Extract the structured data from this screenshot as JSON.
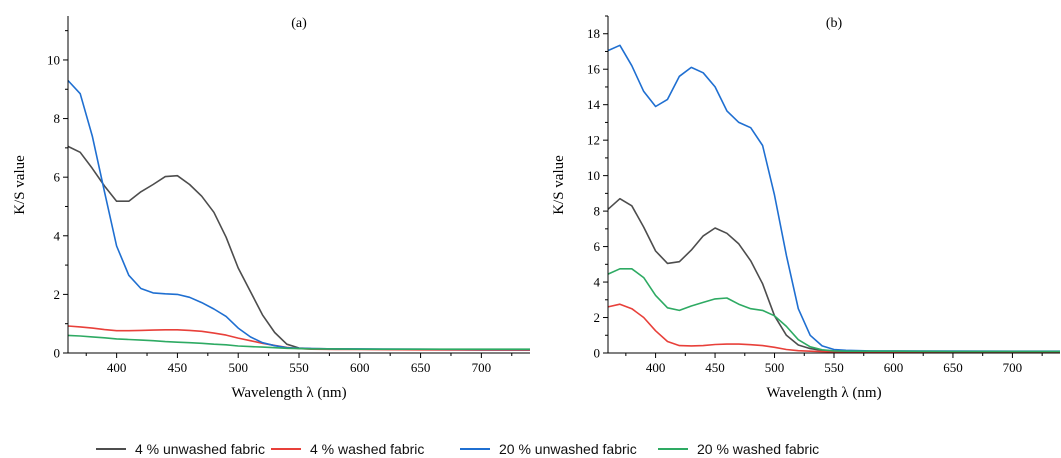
{
  "legend_items": [
    {
      "label": "4 % unwashed fabric",
      "color": "#4d4d4d"
    },
    {
      "label": "4 % washed fabric",
      "color": "#e8403a"
    },
    {
      "label": "20 % unwashed fabric",
      "color": "#1f6fd1"
    },
    {
      "label": "20 % washed fabric",
      "color": "#2eaa63"
    }
  ],
  "chart_data": [
    {
      "type": "line",
      "panel_label": "(a)",
      "xlabel": "Wavelength λ (nm)",
      "ylabel": "K/S value",
      "xlim": [
        360,
        740
      ],
      "ylim": [
        0,
        11.5
      ],
      "xticks": [
        400,
        450,
        500,
        550,
        600,
        650,
        700
      ],
      "yticks": [
        0,
        2,
        4,
        6,
        8,
        10
      ],
      "series": [
        {
          "name": "4 % unwashed fabric",
          "color": "#4d4d4d",
          "x": [
            360,
            370,
            380,
            390,
            400,
            410,
            420,
            430,
            440,
            450,
            460,
            470,
            480,
            490,
            500,
            510,
            520,
            530,
            540,
            550,
            560,
            580,
            600,
            650,
            700,
            740
          ],
          "y": [
            7.05,
            6.85,
            6.3,
            5.7,
            5.18,
            5.18,
            5.5,
            5.75,
            6.02,
            6.05,
            5.75,
            5.35,
            4.8,
            3.95,
            2.9,
            2.1,
            1.3,
            0.7,
            0.3,
            0.17,
            0.15,
            0.14,
            0.13,
            0.12,
            0.11,
            0.1
          ]
        },
        {
          "name": "4 % washed fabric",
          "color": "#e8403a",
          "x": [
            360,
            370,
            380,
            390,
            400,
            410,
            420,
            430,
            440,
            450,
            460,
            470,
            480,
            490,
            500,
            510,
            520,
            530,
            540,
            550,
            560,
            580,
            600,
            650,
            700,
            740
          ],
          "y": [
            0.92,
            0.89,
            0.85,
            0.8,
            0.76,
            0.76,
            0.77,
            0.78,
            0.79,
            0.79,
            0.77,
            0.74,
            0.68,
            0.61,
            0.51,
            0.42,
            0.33,
            0.26,
            0.19,
            0.15,
            0.13,
            0.12,
            0.12,
            0.11,
            0.1,
            0.1
          ]
        },
        {
          "name": "20 % unwashed fabric",
          "color": "#1f6fd1",
          "x": [
            360,
            370,
            380,
            390,
            400,
            410,
            420,
            430,
            440,
            450,
            460,
            470,
            480,
            490,
            500,
            510,
            520,
            530,
            540,
            550,
            560,
            580,
            600,
            650,
            700,
            740
          ],
          "y": [
            9.3,
            8.85,
            7.4,
            5.5,
            3.65,
            2.65,
            2.2,
            2.05,
            2.02,
            2.0,
            1.9,
            1.72,
            1.5,
            1.25,
            0.85,
            0.55,
            0.35,
            0.25,
            0.18,
            0.16,
            0.15,
            0.14,
            0.14,
            0.13,
            0.12,
            0.12
          ]
        },
        {
          "name": "20 % washed fabric",
          "color": "#2eaa63",
          "x": [
            360,
            370,
            380,
            390,
            400,
            410,
            420,
            430,
            440,
            450,
            460,
            470,
            480,
            490,
            500,
            510,
            520,
            530,
            540,
            550,
            560,
            580,
            600,
            650,
            700,
            740
          ],
          "y": [
            0.6,
            0.58,
            0.55,
            0.52,
            0.48,
            0.46,
            0.44,
            0.42,
            0.39,
            0.37,
            0.35,
            0.33,
            0.3,
            0.28,
            0.24,
            0.22,
            0.2,
            0.18,
            0.16,
            0.15,
            0.14,
            0.14,
            0.13,
            0.13,
            0.13,
            0.13
          ]
        }
      ]
    },
    {
      "type": "line",
      "panel_label": "(b)",
      "xlabel": "Wavelength λ (nm)",
      "ylabel": "K/S value",
      "xlim": [
        360,
        740
      ],
      "ylim": [
        0,
        19
      ],
      "xticks": [
        400,
        450,
        500,
        550,
        600,
        650,
        700
      ],
      "yticks": [
        0,
        2,
        4,
        6,
        8,
        10,
        12,
        14,
        16,
        18
      ],
      "series": [
        {
          "name": "4 % unwashed fabric",
          "color": "#4d4d4d",
          "x": [
            360,
            370,
            380,
            390,
            400,
            410,
            420,
            430,
            440,
            450,
            460,
            470,
            480,
            490,
            500,
            510,
            520,
            530,
            540,
            550,
            560,
            580,
            600,
            650,
            700,
            740
          ],
          "y": [
            8.1,
            8.7,
            8.3,
            7.1,
            5.75,
            5.05,
            5.15,
            5.8,
            6.6,
            7.05,
            6.75,
            6.15,
            5.2,
            3.9,
            2.1,
            1.0,
            0.45,
            0.25,
            0.15,
            0.12,
            0.1,
            0.1,
            0.09,
            0.09,
            0.08,
            0.08
          ]
        },
        {
          "name": "4 % washed fabric",
          "color": "#e8403a",
          "x": [
            360,
            370,
            380,
            390,
            400,
            410,
            420,
            430,
            440,
            450,
            460,
            470,
            480,
            490,
            500,
            510,
            520,
            530,
            540,
            550,
            560,
            580,
            600,
            650,
            700,
            740
          ],
          "y": [
            2.6,
            2.75,
            2.5,
            2.0,
            1.25,
            0.65,
            0.42,
            0.4,
            0.42,
            0.48,
            0.5,
            0.5,
            0.47,
            0.42,
            0.32,
            0.2,
            0.13,
            0.1,
            0.08,
            0.07,
            0.07,
            0.07,
            0.06,
            0.06,
            0.06,
            0.06
          ]
        },
        {
          "name": "20 % unwashed fabric",
          "color": "#1f6fd1",
          "x": [
            360,
            370,
            380,
            390,
            400,
            410,
            420,
            430,
            440,
            450,
            460,
            470,
            480,
            490,
            500,
            510,
            520,
            530,
            540,
            550,
            560,
            580,
            600,
            650,
            700,
            740
          ],
          "y": [
            17.05,
            17.35,
            16.2,
            14.75,
            13.9,
            14.3,
            15.6,
            16.1,
            15.8,
            15.0,
            13.65,
            13.0,
            12.7,
            11.7,
            8.9,
            5.5,
            2.5,
            1.0,
            0.4,
            0.2,
            0.15,
            0.12,
            0.12,
            0.11,
            0.1,
            0.1
          ]
        },
        {
          "name": "20 % washed fabric",
          "color": "#2eaa63",
          "x": [
            360,
            370,
            380,
            390,
            400,
            410,
            420,
            430,
            440,
            450,
            460,
            470,
            480,
            490,
            500,
            510,
            520,
            530,
            540,
            550,
            560,
            580,
            600,
            650,
            700,
            740
          ],
          "y": [
            4.45,
            4.75,
            4.75,
            4.25,
            3.25,
            2.55,
            2.4,
            2.65,
            2.85,
            3.05,
            3.1,
            2.75,
            2.5,
            2.4,
            2.1,
            1.5,
            0.75,
            0.35,
            0.18,
            0.12,
            0.1,
            0.1,
            0.1,
            0.09,
            0.09,
            0.09
          ]
        }
      ]
    }
  ]
}
